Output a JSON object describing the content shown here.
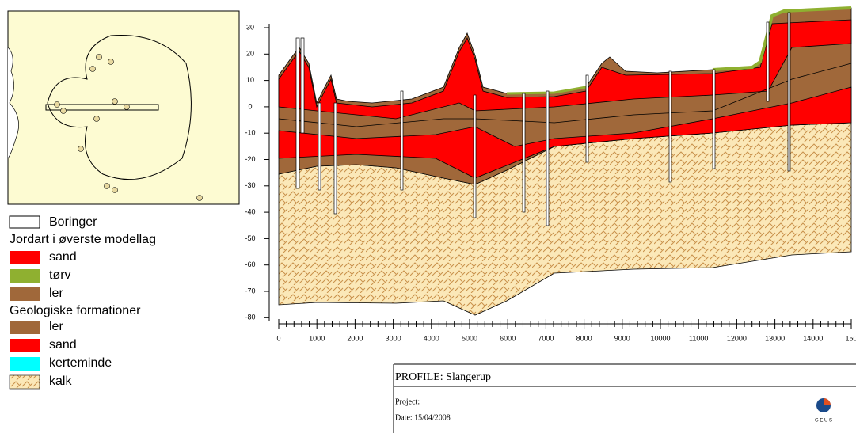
{
  "y_axis": {
    "ticks": [
      30,
      20,
      10,
      0,
      -10,
      -20,
      -30,
      -40,
      -50,
      -60,
      -70,
      -80
    ]
  },
  "x_axis": {
    "ticks": [
      "0",
      "1000",
      "2000",
      "3000",
      "4000",
      "5000",
      "6000",
      "7000",
      "8000",
      "9000",
      "10000",
      "11000",
      "12000",
      "13000",
      "14000",
      "150"
    ]
  },
  "legend": {
    "boreholes": "Boringer",
    "top_layer_title": "Jordart i øverste modellag",
    "top_layer_items": [
      "sand",
      "tørv",
      "ler"
    ],
    "formations_title": "Geologiske formationer",
    "formation_items": [
      "ler",
      "sand",
      "kerteminde",
      "kalk"
    ]
  },
  "title_block": {
    "profile": "PROFILE: Slangerup",
    "project": "Project:",
    "date": "Date: 15/04/2008",
    "logo": "G E U S"
  }
}
